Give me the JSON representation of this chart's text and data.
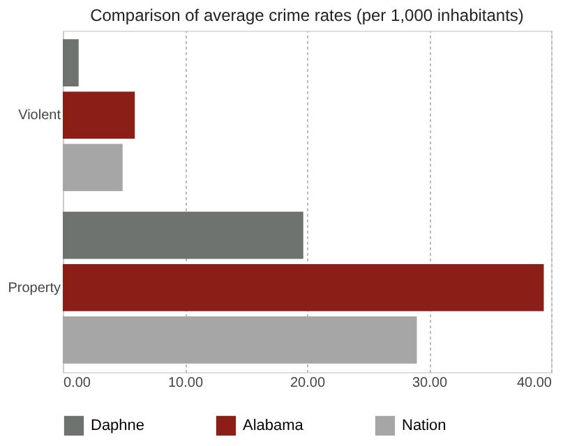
{
  "chart_data": {
    "type": "bar",
    "orientation": "horizontal",
    "title": "Comparison of average crime rates (per 1,000 inhabitants)",
    "categories": [
      "Violent",
      "Property"
    ],
    "series": [
      {
        "name": "Daphne",
        "color": "#6f7370",
        "values": [
          1.3,
          19.7
        ]
      },
      {
        "name": "Alabama",
        "color": "#8c1e18",
        "values": [
          5.9,
          39.4
        ]
      },
      {
        "name": "Nation",
        "color": "#a6a6a6",
        "values": [
          4.9,
          29.0
        ]
      }
    ],
    "xlim": [
      0,
      40
    ],
    "xticks": [
      {
        "value": 0,
        "label": "0.00"
      },
      {
        "value": 10,
        "label": "10.00"
      },
      {
        "value": 20,
        "label": "20.00"
      },
      {
        "value": 30,
        "label": "30.00"
      },
      {
        "value": 40,
        "label": "40.00"
      }
    ],
    "grid": "x",
    "legend": "bottom"
  }
}
